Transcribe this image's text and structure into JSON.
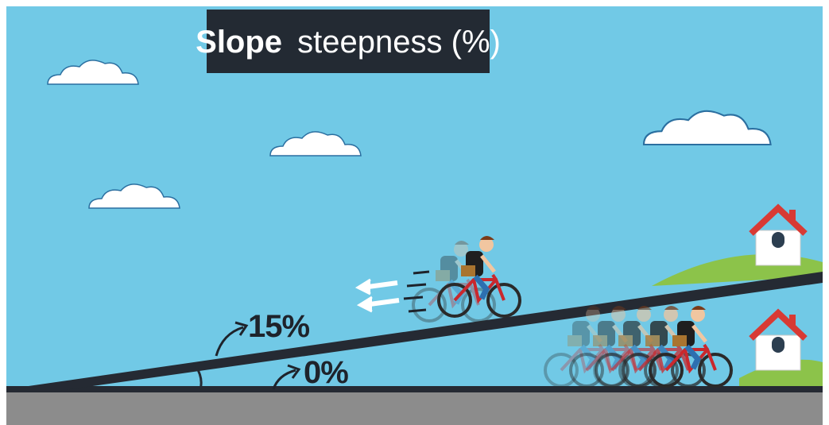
{
  "header": {
    "title_bold": "Slope",
    "title_rest": "steepness (%)"
  },
  "labels": {
    "steep": "15%",
    "flat": "0%"
  }
}
